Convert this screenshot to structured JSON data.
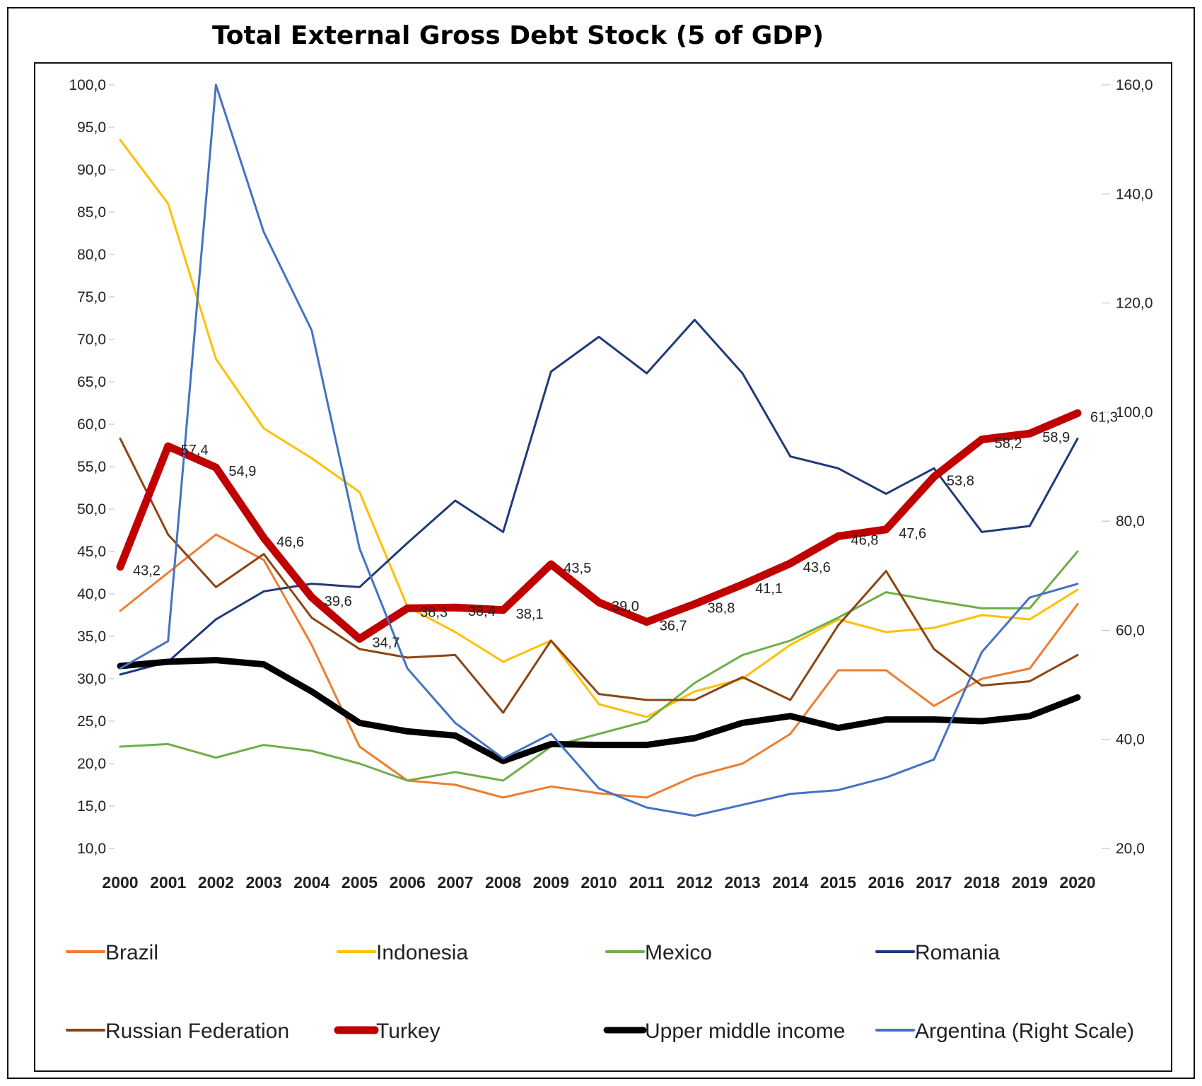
{
  "chart_data": {
    "type": "line",
    "title": "Total External Gross Debt Stock (5 of GDP)",
    "x": [
      2000,
      2001,
      2002,
      2003,
      2004,
      2005,
      2006,
      2007,
      2008,
      2009,
      2010,
      2011,
      2012,
      2013,
      2014,
      2015,
      2016,
      2017,
      2018,
      2019,
      2020
    ],
    "y_left": {
      "min": 10,
      "max": 100,
      "step": 5
    },
    "y_right": {
      "min": 20,
      "max": 160,
      "step": 20
    },
    "y_left_ticks": [
      "100,0",
      "95,0",
      "90,0",
      "85,0",
      "80,0",
      "75,0",
      "70,0",
      "65,0",
      "60,0",
      "55,0",
      "50,0",
      "45,0",
      "40,0",
      "35,0",
      "30,0",
      "25,0",
      "20,0",
      "15,0",
      "10,0"
    ],
    "y_right_ticks": [
      "160,0",
      "140,0",
      "120,0",
      "100,0",
      "80,0",
      "60,0",
      "40,0",
      "20,0"
    ],
    "grid": false,
    "legend_position": "bottom",
    "series": [
      {
        "name": "Brazil",
        "color": "#ED7D31",
        "width": 3,
        "axis": "left",
        "values": [
          38,
          42.5,
          47,
          44,
          34,
          22,
          18,
          17.5,
          16,
          17.3,
          16.5,
          16,
          18.5,
          20,
          23.5,
          31,
          31,
          26.8,
          30,
          31.2,
          38.8
        ]
      },
      {
        "name": "Indonesia",
        "color": "#FFC000",
        "width": 3,
        "axis": "left",
        "values": [
          93.5,
          86,
          67.7,
          59.5,
          56,
          52,
          38.5,
          35.5,
          32,
          34.5,
          27,
          25.5,
          28.5,
          30,
          34,
          37,
          35.5,
          36,
          37.5,
          37,
          40.5
        ]
      },
      {
        "name": "Mexico",
        "color": "#70AD47",
        "width": 3,
        "axis": "left",
        "values": [
          22,
          22.3,
          20.7,
          22.2,
          21.5,
          20,
          18,
          19,
          18,
          22,
          23.5,
          25,
          29.5,
          32.8,
          34.5,
          37.2,
          40.2,
          39.2,
          38.3,
          38.3,
          45
        ]
      },
      {
        "name": "Romania",
        "color": "#1F3A78",
        "width": 3,
        "axis": "left",
        "values": [
          30.5,
          32,
          37,
          40.3,
          41.2,
          40.8,
          46,
          51,
          47.3,
          66.2,
          70.3,
          66,
          72.3,
          66,
          56.2,
          54.8,
          51.8,
          54.8,
          47.3,
          48,
          58.3
        ]
      },
      {
        "name": "Russian Federation",
        "color": "#8B4513",
        "width": 3,
        "axis": "left",
        "values": [
          58.3,
          47,
          40.8,
          44.7,
          37.2,
          33.5,
          32.5,
          32.8,
          26,
          34.5,
          28.2,
          27.5,
          27.5,
          30.2,
          27.5,
          36.3,
          42.7,
          33.5,
          29.2,
          29.7,
          32.8
        ]
      },
      {
        "name": "Turkey",
        "color": "#C00000",
        "width": 11,
        "axis": "left",
        "values": [
          43.2,
          57.4,
          54.9,
          46.6,
          39.6,
          34.7,
          38.3,
          38.4,
          38.1,
          43.5,
          39.0,
          36.7,
          38.8,
          41.1,
          43.6,
          46.8,
          47.6,
          53.8,
          58.2,
          58.9,
          61.3
        ],
        "labels": [
          "43,2",
          "57,4",
          "54,9",
          "46,6",
          "39,6",
          "34,7",
          "38,3",
          "38,4",
          "38,1",
          "43,5",
          "39,0",
          "36,7",
          "38,8",
          "41,1",
          "43,6",
          "46,8",
          "47,6",
          "53,8",
          "58,2",
          "58,9",
          "61,3"
        ]
      },
      {
        "name": "Upper middle income",
        "color": "#000000",
        "width": 9,
        "axis": "left",
        "values": [
          31.5,
          32,
          32.2,
          31.7,
          28.5,
          24.8,
          23.8,
          23.3,
          20.3,
          22.3,
          22.2,
          22.2,
          23,
          24.8,
          25.6,
          24.2,
          25.2,
          25.2,
          25,
          25.6,
          27.8
        ]
      },
      {
        "name": "Argentina (Right Scale)",
        "color": "#4472C4",
        "width": 3,
        "axis": "right",
        "values": [
          53,
          58,
          160,
          133,
          115,
          75,
          53,
          43,
          36.5,
          41,
          31,
          27.5,
          26,
          28,
          30,
          30.7,
          33,
          36.3,
          56,
          66,
          68.5
        ]
      }
    ]
  }
}
